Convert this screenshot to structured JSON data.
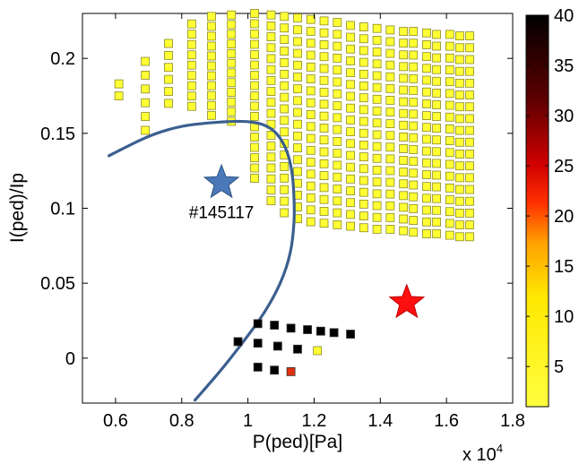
{
  "chart_data": {
    "type": "scatter",
    "xlabel": "P(ped)[Pa]",
    "ylabel": "I(ped)/Ip",
    "x_multiplier_label": "x 10",
    "x_multiplier_exponent": "4",
    "xlim": [
      0.5,
      1.8
    ],
    "ylim": [
      -0.03,
      0.23
    ],
    "xticks": [
      0.6,
      0.8,
      1.0,
      1.2,
      1.4,
      1.6,
      1.8
    ],
    "xtick_labels": [
      "0.6",
      "0.8",
      "1",
      "1.2",
      "1.4",
      "1.6",
      "1.8"
    ],
    "yticks": [
      0,
      0.05,
      0.1,
      0.15,
      0.2
    ],
    "ytick_labels": [
      "0",
      "0.05",
      "0.1",
      "0.15",
      "0.2"
    ],
    "grid": false,
    "colorbar": {
      "range": [
        1,
        40
      ],
      "ticks": [
        5,
        10,
        15,
        20,
        25,
        30,
        35,
        40
      ],
      "tick_labels": [
        "5",
        "10",
        "15",
        "20",
        "25",
        "30",
        "35",
        "40"
      ],
      "colormap": "hot (reversed)"
    },
    "yellow_grid": {
      "color": "#ffff33",
      "columns": [
        {
          "x": 0.61,
          "y_top": 0.183,
          "y_bottom": 0.175
        },
        {
          "x": 0.69,
          "y_top": 0.198,
          "y_bottom": 0.152
        },
        {
          "x": 0.76,
          "y_top": 0.21,
          "y_bottom": 0.17
        },
        {
          "x": 0.83,
          "y_top": 0.223,
          "y_bottom": 0.168
        },
        {
          "x": 0.89,
          "y_top": 0.228,
          "y_bottom": 0.162
        },
        {
          "x": 0.95,
          "y_top": 0.229,
          "y_bottom": 0.158
        },
        {
          "x": 1.02,
          "y_top": 0.23,
          "y_bottom": 0.12
        },
        {
          "x": 1.07,
          "y_top": 0.229,
          "y_bottom": 0.105
        },
        {
          "x": 1.11,
          "y_top": 0.228,
          "y_bottom": 0.097
        },
        {
          "x": 1.15,
          "y_top": 0.227,
          "y_bottom": 0.093
        },
        {
          "x": 1.19,
          "y_top": 0.226,
          "y_bottom": 0.091
        },
        {
          "x": 1.23,
          "y_top": 0.225,
          "y_bottom": 0.09
        },
        {
          "x": 1.27,
          "y_top": 0.224,
          "y_bottom": 0.089
        },
        {
          "x": 1.31,
          "y_top": 0.222,
          "y_bottom": 0.088
        },
        {
          "x": 1.35,
          "y_top": 0.221,
          "y_bottom": 0.087
        },
        {
          "x": 1.39,
          "y_top": 0.22,
          "y_bottom": 0.086
        },
        {
          "x": 1.43,
          "y_top": 0.219,
          "y_bottom": 0.086
        },
        {
          "x": 1.47,
          "y_top": 0.218,
          "y_bottom": 0.085
        },
        {
          "x": 1.5,
          "y_top": 0.218,
          "y_bottom": 0.084
        },
        {
          "x": 1.54,
          "y_top": 0.217,
          "y_bottom": 0.083
        },
        {
          "x": 1.57,
          "y_top": 0.216,
          "y_bottom": 0.083
        },
        {
          "x": 1.61,
          "y_top": 0.216,
          "y_bottom": 0.082
        },
        {
          "x": 1.64,
          "y_top": 0.215,
          "y_bottom": 0.081
        },
        {
          "x": 1.67,
          "y_top": 0.215,
          "y_bottom": 0.081
        }
      ],
      "rows": 18
    },
    "other_points": [
      {
        "x": 1.03,
        "y": 0.023,
        "color": "#000000"
      },
      {
        "x": 1.08,
        "y": 0.022,
        "color": "#000000"
      },
      {
        "x": 1.13,
        "y": 0.02,
        "color": "#000000"
      },
      {
        "x": 1.18,
        "y": 0.019,
        "color": "#000000"
      },
      {
        "x": 1.22,
        "y": 0.018,
        "color": "#000000"
      },
      {
        "x": 1.26,
        "y": 0.017,
        "color": "#000000"
      },
      {
        "x": 1.31,
        "y": 0.016,
        "color": "#000000"
      },
      {
        "x": 0.97,
        "y": 0.011,
        "color": "#000000"
      },
      {
        "x": 1.03,
        "y": 0.01,
        "color": "#000000"
      },
      {
        "x": 1.09,
        "y": 0.008,
        "color": "#000000"
      },
      {
        "x": 1.15,
        "y": 0.006,
        "color": "#000000"
      },
      {
        "x": 1.21,
        "y": 0.005,
        "color": "#ffff33"
      },
      {
        "x": 1.03,
        "y": -0.006,
        "color": "#000000"
      },
      {
        "x": 1.08,
        "y": -0.008,
        "color": "#000000"
      },
      {
        "x": 1.13,
        "y": -0.009,
        "color": "#e03010"
      }
    ],
    "boundary_curve": {
      "color": "#3b5f8f",
      "x": [
        0.58,
        0.65,
        0.72,
        0.8,
        0.88,
        0.95,
        1.0,
        1.05,
        1.09,
        1.12,
        1.135,
        1.14,
        1.14,
        1.13,
        1.1,
        1.05,
        0.99,
        0.93,
        0.88,
        0.84
      ],
      "y": [
        0.135,
        0.143,
        0.15,
        0.155,
        0.157,
        0.158,
        0.158,
        0.156,
        0.15,
        0.138,
        0.123,
        0.105,
        0.09,
        0.07,
        0.05,
        0.03,
        0.012,
        -0.005,
        -0.018,
        -0.028
      ]
    },
    "markers": [
      {
        "shape": "star",
        "x": 0.92,
        "y": 0.117,
        "color": "#4a78b8"
      },
      {
        "shape": "star",
        "x": 1.48,
        "y": 0.037,
        "color": "#ff1010"
      }
    ],
    "annotations": [
      {
        "text": "#145117",
        "x": 0.92,
        "y": 0.097
      }
    ]
  }
}
